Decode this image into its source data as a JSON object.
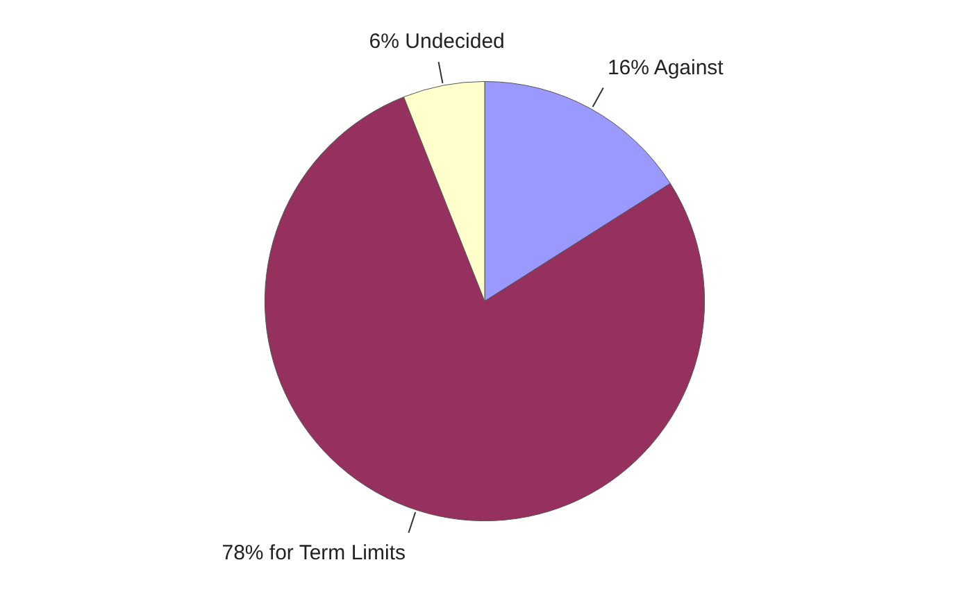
{
  "chart_data": {
    "type": "pie",
    "categories": [
      "16% Against",
      "78% for Term Limits",
      "6% Undecided"
    ],
    "values": [
      16,
      78,
      6
    ],
    "colors": [
      "#9999ff",
      "#96305f",
      "#ffffcc"
    ]
  }
}
